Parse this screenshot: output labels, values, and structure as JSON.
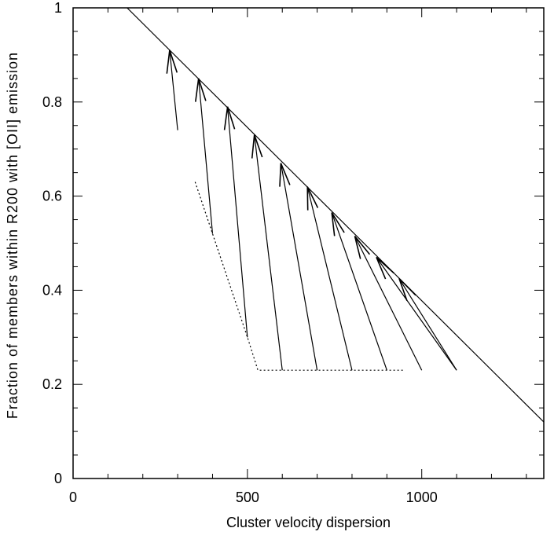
{
  "chart_data": {
    "type": "line",
    "xlabel": "Cluster velocity dispersion",
    "ylabel": "Fraction of members within R200 with [OII] emission",
    "xlim": [
      0,
      1350
    ],
    "ylim": [
      0,
      1
    ],
    "xticks": [
      0,
      500,
      1000
    ],
    "xtick_labels": [
      "0",
      "500",
      "1000"
    ],
    "yticks": [
      0,
      0.2,
      0.4,
      0.6,
      0.8,
      1
    ],
    "ytick_labels": [
      "0",
      "0.2",
      "0.4",
      "0.6",
      "0.8",
      "1"
    ],
    "grid": false,
    "legend": "none",
    "relation_line": {
      "style": "solid",
      "x": [
        155,
        1350
      ],
      "y": [
        1.0,
        0.12
      ]
    },
    "dotted_curve": {
      "style": "dotted",
      "x": [
        350,
        400,
        500,
        530,
        950
      ],
      "y": [
        0.63,
        0.52,
        0.3,
        0.23,
        0.23
      ]
    },
    "arrows": [
      {
        "x_start": 300,
        "y_start": 0.74,
        "x_end": 277,
        "y_end": 0.91
      },
      {
        "x_start": 400,
        "y_start": 0.52,
        "x_end": 360,
        "y_end": 0.85
      },
      {
        "x_start": 500,
        "y_start": 0.3,
        "x_end": 443,
        "y_end": 0.79
      },
      {
        "x_start": 600,
        "y_start": 0.23,
        "x_end": 520,
        "y_end": 0.73
      },
      {
        "x_start": 700,
        "y_start": 0.23,
        "x_end": 596,
        "y_end": 0.67
      },
      {
        "x_start": 800,
        "y_start": 0.23,
        "x_end": 672,
        "y_end": 0.62
      },
      {
        "x_start": 900,
        "y_start": 0.23,
        "x_end": 742,
        "y_end": 0.565
      },
      {
        "x_start": 1000,
        "y_start": 0.23,
        "x_end": 808,
        "y_end": 0.515
      },
      {
        "x_start": 1100,
        "y_start": 0.23,
        "x_end": 870,
        "y_end": 0.47
      },
      {
        "x_start": 1100,
        "y_start": 0.23,
        "x_end": 935,
        "y_end": 0.425
      }
    ],
    "line_color": "#000000"
  }
}
